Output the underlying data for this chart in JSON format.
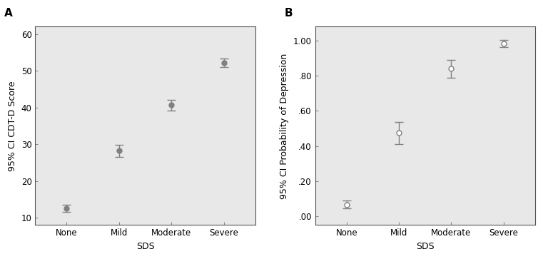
{
  "panel_A": {
    "label": "A",
    "categories": [
      "None",
      "Mild",
      "Moderate",
      "Severe"
    ],
    "means": [
      12.5,
      28.3,
      40.7,
      52.2
    ],
    "ci_lower": [
      11.5,
      26.5,
      39.2,
      51.0
    ],
    "ci_upper": [
      13.5,
      29.8,
      42.0,
      53.3
    ],
    "ylabel": "95% CI CDT-D Score",
    "xlabel": "SDS",
    "ylim": [
      8,
      62
    ],
    "yticks": [
      10,
      20,
      30,
      40,
      50,
      60
    ],
    "ytick_labels": [
      "10",
      "20",
      "30",
      "40",
      "50",
      "60"
    ],
    "marker_filled": true
  },
  "panel_B": {
    "label": "B",
    "categories": [
      "None",
      "Mild",
      "Moderate",
      "Severe"
    ],
    "means": [
      0.065,
      0.475,
      0.84,
      0.982
    ],
    "ci_lower": [
      0.045,
      0.41,
      0.79,
      0.965
    ],
    "ci_upper": [
      0.09,
      0.535,
      0.89,
      1.005
    ],
    "ylabel": "95% CI Probability of Depression",
    "xlabel": "SDS",
    "ylim": [
      -0.05,
      1.08
    ],
    "yticks": [
      0.0,
      0.2,
      0.4,
      0.6,
      0.8,
      1.0
    ],
    "ytick_labels": [
      ".00",
      ".20",
      ".40",
      ".60",
      ".80",
      "1.00"
    ],
    "marker_filled": false
  },
  "bg_color": "#e8e8e8",
  "fig_bg_color": "#ffffff",
  "point_color": "#808080",
  "errorbar_color": "#808080",
  "errorbar_capsize": 4,
  "errorbar_linewidth": 1.0,
  "marker_size": 5,
  "marker_style": "o",
  "label_fontsize": 9,
  "tick_fontsize": 8.5,
  "panel_label_fontsize": 11,
  "panel_label_weight": "bold"
}
